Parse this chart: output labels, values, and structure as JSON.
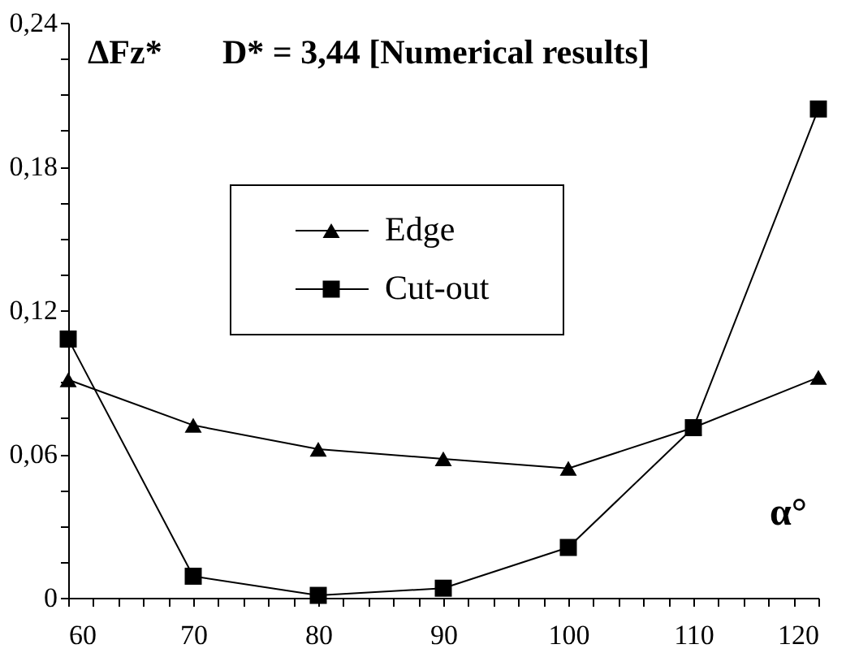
{
  "chart_data": {
    "type": "line",
    "title": "D* = 3,44 [Numerical results]",
    "ylabel": "ΔFz*",
    "xlabel": "α°",
    "x": [
      60,
      70,
      80,
      90,
      100,
      110,
      120
    ],
    "series": [
      {
        "name": "Edge",
        "color": "#000000",
        "marker": "triangle",
        "values": [
          0.091,
          0.072,
          0.062,
          0.058,
          0.054,
          0.071,
          0.092
        ]
      },
      {
        "name": "Cut-out",
        "color": "#000000",
        "marker": "square",
        "values": [
          0.108,
          0.009,
          0.001,
          0.004,
          0.021,
          0.071,
          0.204
        ]
      }
    ],
    "xlim": [
      60,
      120
    ],
    "xticks": [
      60,
      {
        "value": 62,
        "label": null
      },
      {
        "value": 64,
        "label": null
      },
      {
        "value": 66,
        "label": null
      },
      {
        "value": 68,
        "label": null
      },
      70,
      {
        "value": 72,
        "label": null
      },
      {
        "value": 74,
        "label": null
      },
      {
        "value": 76,
        "label": null
      },
      {
        "value": 78,
        "label": null
      },
      80,
      {
        "value": 82,
        "label": null
      },
      {
        "value": 84,
        "label": null
      },
      {
        "value": 86,
        "label": null
      },
      {
        "value": 88,
        "label": null
      },
      90,
      {
        "value": 92,
        "label": null
      },
      {
        "value": 94,
        "label": null
      },
      {
        "value": 96,
        "label": null
      },
      {
        "value": 98,
        "label": null
      },
      100,
      {
        "value": 102,
        "label": null
      },
      {
        "value": 104,
        "label": null
      },
      {
        "value": 106,
        "label": null
      },
      {
        "value": 108,
        "label": null
      },
      110,
      {
        "value": 112,
        "label": null
      },
      {
        "value": 114,
        "label": null
      },
      {
        "value": 116,
        "label": null
      },
      {
        "value": 118,
        "label": null
      },
      120
    ],
    "ylim": [
      0,
      0.24
    ],
    "yticks": [
      0,
      {
        "value": 0.015,
        "label": null
      },
      {
        "value": 0.03,
        "label": null
      },
      {
        "value": 0.045,
        "label": null
      },
      {
        "value": 0.06,
        "label": "0,06"
      },
      {
        "value": 0.075,
        "label": null
      },
      {
        "value": 0.09,
        "label": null
      },
      {
        "value": 0.105,
        "label": null
      },
      {
        "value": 0.12,
        "label": "0,12"
      },
      {
        "value": 0.135,
        "label": null
      },
      {
        "value": 0.15,
        "label": null
      },
      {
        "value": 0.165,
        "label": null
      },
      {
        "value": 0.18,
        "label": "0,18"
      },
      {
        "value": 0.195,
        "label": null
      },
      {
        "value": 0.21,
        "label": null
      },
      {
        "value": 0.225,
        "label": null
      },
      {
        "value": 0.24,
        "label": "0,24"
      }
    ],
    "grid": false,
    "legend": "top left",
    "line_style": "solid"
  }
}
